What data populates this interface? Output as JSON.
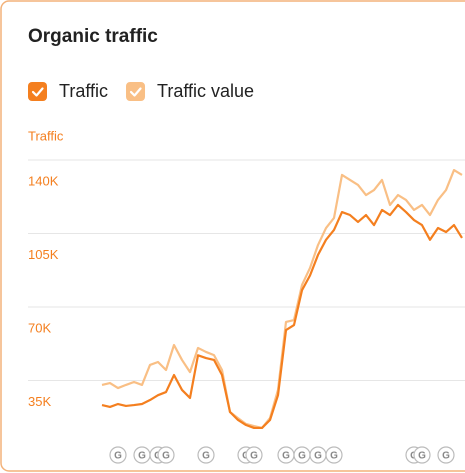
{
  "chart_data": {
    "type": "line",
    "title": "Organic traffic",
    "y_label": "Traffic",
    "categories": [
      null,
      null,
      null,
      null,
      null,
      null,
      null,
      null,
      null,
      null,
      null,
      null,
      null,
      null,
      null,
      null,
      null,
      null,
      null,
      null,
      null,
      null,
      null,
      null,
      null,
      null,
      null,
      null,
      null,
      null,
      null,
      null,
      null,
      null,
      null,
      null,
      null,
      null,
      null,
      null,
      null,
      null,
      null,
      null,
      null,
      null
    ],
    "series": [
      {
        "name": "Traffic",
        "color": "#f47f1f",
        "values": [
          23300,
          22400,
          23800,
          22900,
          23300,
          23800,
          25700,
          28000,
          29500,
          37600,
          30500,
          26700,
          47000,
          45700,
          44800,
          37600,
          20000,
          16200,
          13800,
          12400,
          12400,
          16200,
          28000,
          59000,
          61400,
          78000,
          85000,
          94800,
          102000,
          106700,
          115200,
          113800,
          110500,
          113800,
          109000,
          116200,
          113800,
          118600,
          115200,
          111400,
          109000,
          102000,
          107600,
          105700,
          109000,
          102900
        ]
      },
      {
        "name": "Traffic value",
        "color": "#f9bf85",
        "values": [
          32900,
          33800,
          31400,
          32900,
          34300,
          32900,
          42400,
          43800,
          40000,
          51900,
          44800,
          39000,
          50500,
          48600,
          47100,
          40000,
          20000,
          17100,
          14300,
          13300,
          12400,
          17100,
          30500,
          62900,
          63800,
          80500,
          88600,
          99500,
          107600,
          112400,
          132900,
          130500,
          128100,
          123300,
          125700,
          130500,
          118600,
          123300,
          121000,
          116200,
          118600,
          113800,
          121000,
          125700,
          135200,
          132900
        ]
      }
    ],
    "ylim": [
      0,
      150000
    ],
    "yticks": [
      {
        "value": 35000,
        "label": "35K"
      },
      {
        "value": 70000,
        "label": "70K"
      },
      {
        "value": 105000,
        "label": "105K"
      },
      {
        "value": 140000,
        "label": "140K"
      }
    ],
    "grid": true,
    "events": {
      "label": "G",
      "indices": [
        2,
        5,
        7,
        8,
        13,
        18,
        19,
        23,
        25,
        27,
        29,
        39,
        40,
        43
      ]
    }
  }
}
